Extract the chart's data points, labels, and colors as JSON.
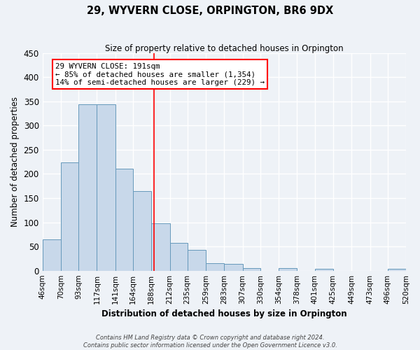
{
  "title": "29, WYVERN CLOSE, ORPINGTON, BR6 9DX",
  "subtitle": "Size of property relative to detached houses in Orpington",
  "xlabel": "Distribution of detached houses by size in Orpington",
  "ylabel": "Number of detached properties",
  "bin_labels": [
    "46sqm",
    "70sqm",
    "93sqm",
    "117sqm",
    "141sqm",
    "164sqm",
    "188sqm",
    "212sqm",
    "235sqm",
    "259sqm",
    "283sqm",
    "307sqm",
    "330sqm",
    "354sqm",
    "378sqm",
    "401sqm",
    "425sqm",
    "449sqm",
    "473sqm",
    "496sqm",
    "520sqm"
  ],
  "bin_edges": [
    46,
    70,
    93,
    117,
    141,
    164,
    188,
    212,
    235,
    259,
    283,
    307,
    330,
    354,
    378,
    401,
    425,
    449,
    473,
    496,
    520
  ],
  "bar_heights": [
    65,
    223,
    344,
    344,
    210,
    165,
    98,
    57,
    43,
    15,
    14,
    6,
    0,
    6,
    0,
    4,
    0,
    0,
    0,
    4
  ],
  "bar_color": "#c8d8ea",
  "bar_edge_color": "#6699bb",
  "vline_x": 191,
  "ylim": [
    0,
    450
  ],
  "yticks": [
    0,
    50,
    100,
    150,
    200,
    250,
    300,
    350,
    400,
    450
  ],
  "annotation_title": "29 WYVERN CLOSE: 191sqm",
  "annotation_line1": "← 85% of detached houses are smaller (1,354)",
  "annotation_line2": "14% of semi-detached houses are larger (229) →",
  "footer_line1": "Contains HM Land Registry data © Crown copyright and database right 2024.",
  "footer_line2": "Contains public sector information licensed under the Open Government Licence v3.0.",
  "bg_color": "#eef2f7",
  "grid_color": "#ffffff"
}
